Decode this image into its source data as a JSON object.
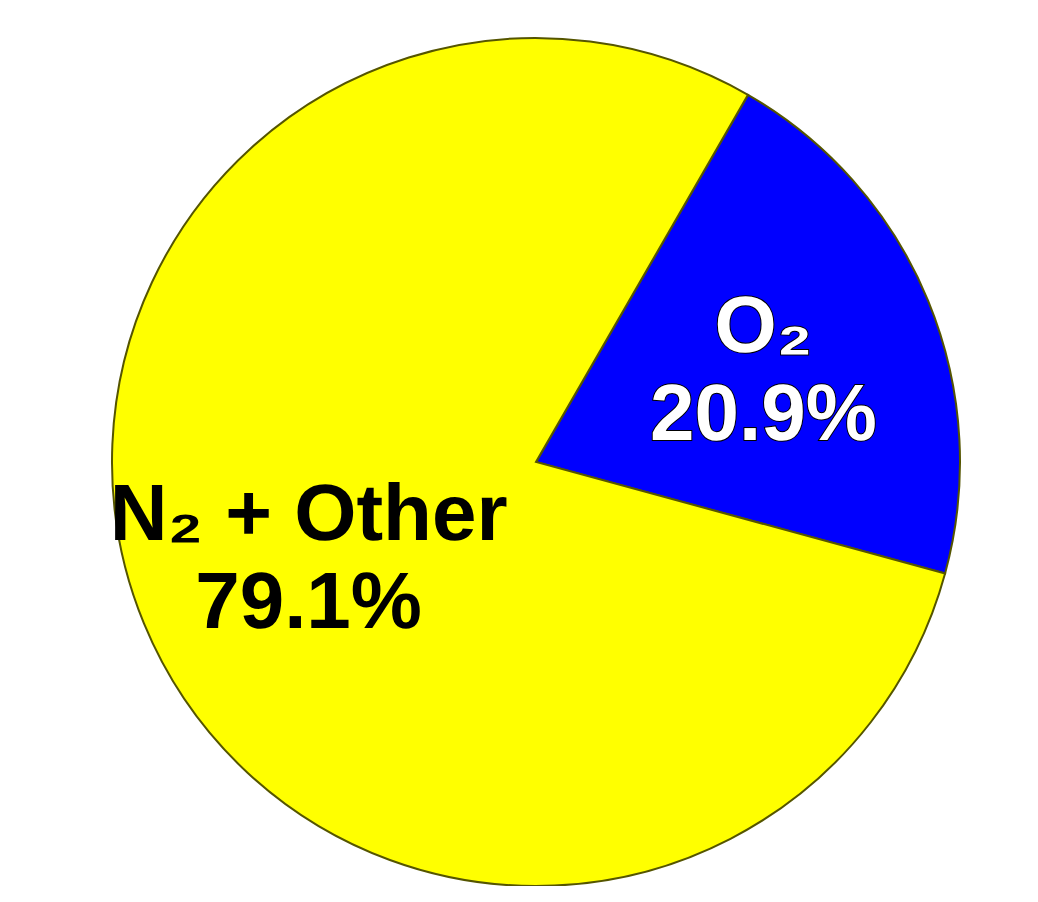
{
  "chart_data": {
    "type": "pie",
    "categories": [
      "O₂",
      "N₂ + Other"
    ],
    "values": [
      20.9,
      79.1
    ],
    "colors": [
      "#0000ff",
      "#ffff00"
    ],
    "value_labels": [
      "20.9%",
      "79.1%"
    ]
  }
}
